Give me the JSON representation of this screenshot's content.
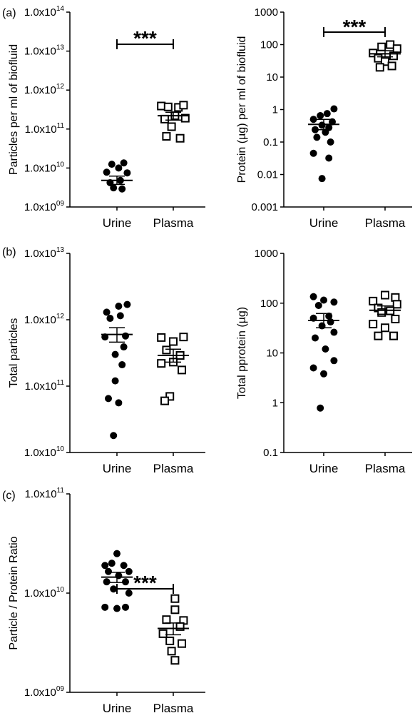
{
  "chart_data": [
    {
      "type": "scatter",
      "panel": "(a)",
      "ylabel": "Particles per ml of biofluid",
      "scale": "log",
      "ylim": [
        1000000000.0,
        100000000000000.0
      ],
      "yticks": [
        {
          "value": 1000000000.0,
          "label": "1.0x10",
          "exp": "09"
        },
        {
          "value": 10000000000.0,
          "label": "1.0x10",
          "exp": "10"
        },
        {
          "value": 100000000000.0,
          "label": "1.0x10",
          "exp": "11"
        },
        {
          "value": 1000000000000.0,
          "label": "1.0x10",
          "exp": "12"
        },
        {
          "value": 10000000000000.0,
          "label": "1.0x10",
          "exp": "13"
        },
        {
          "value": 100000000000000.0,
          "label": "1.0x10",
          "exp": "14"
        }
      ],
      "categories": [
        "Urine",
        "Plasma"
      ],
      "series": [
        {
          "category": "Urine",
          "marker": "filled-circle",
          "points": [
            [
              -0.3,
              7800000000.0
            ],
            [
              0.05,
              10000000000.0
            ],
            [
              0.3,
              7500000000.0
            ],
            [
              -0.15,
              12500000000.0
            ],
            [
              0.2,
              13500000000.0
            ],
            [
              -0.2,
              4200000000.0
            ],
            [
              0.1,
              4800000000.0
            ],
            [
              -0.1,
              3100000000.0
            ],
            [
              0.15,
              2900000000.0
            ]
          ],
          "mean": 4800000000.0,
          "sem_low": 3800000000.0,
          "sem_high": 6200000000.0
        },
        {
          "category": "Plasma",
          "marker": "open-square",
          "points": [
            [
              -0.35,
              390000000000.0
            ],
            [
              -0.15,
              370000000000.0
            ],
            [
              0.15,
              360000000000.0
            ],
            [
              0.3,
              410000000000.0
            ],
            [
              -0.25,
              180000000000.0
            ],
            [
              0.05,
              220000000000.0
            ],
            [
              0.35,
              190000000000.0
            ],
            [
              -0.05,
              115000000000.0
            ],
            [
              -0.2,
              65000000000.0
            ],
            [
              0.2,
              58000000000.0
            ]
          ],
          "mean": 220000000000.0,
          "sem_low": 170000000000.0,
          "sem_high": 270000000000.0
        }
      ],
      "significance": "***"
    },
    {
      "type": "scatter",
      "panel": "",
      "ylabel": "Protein (µg) per ml of biofluid",
      "scale": "log",
      "ylim": [
        0.001,
        1000
      ],
      "yticks": [
        {
          "value": 0.001,
          "label": "0.001"
        },
        {
          "value": 0.01,
          "label": "0.01"
        },
        {
          "value": 0.1,
          "label": "0.1"
        },
        {
          "value": 1,
          "label": "1"
        },
        {
          "value": 10,
          "label": "10"
        },
        {
          "value": 100,
          "label": "100"
        },
        {
          "value": 1000,
          "label": "1000"
        }
      ],
      "categories": [
        "Urine",
        "Plasma"
      ],
      "series": [
        {
          "category": "Urine",
          "marker": "filled-circle",
          "points": [
            [
              0.3,
              1.05
            ],
            [
              0.1,
              0.75
            ],
            [
              -0.1,
              0.65
            ],
            [
              -0.3,
              0.5
            ],
            [
              0.25,
              0.42
            ],
            [
              -0.05,
              0.33
            ],
            [
              0.15,
              0.28
            ],
            [
              -0.25,
              0.24
            ],
            [
              0.05,
              0.2
            ],
            [
              -0.2,
              0.14
            ],
            [
              0.2,
              0.1
            ],
            [
              -0.3,
              0.045
            ],
            [
              0.15,
              0.032
            ],
            [
              -0.05,
              0.0075
            ]
          ],
          "mean": 0.35,
          "sem_low": 0.24,
          "sem_high": 0.5
        },
        {
          "category": "Plasma",
          "marker": "open-square",
          "points": [
            [
              0.15,
              100
            ],
            [
              -0.1,
              85
            ],
            [
              0.35,
              75
            ],
            [
              -0.35,
              55
            ],
            [
              0.25,
              45
            ],
            [
              -0.2,
              38
            ],
            [
              0.0,
              30
            ],
            [
              0.2,
              22
            ],
            [
              -0.15,
              20
            ]
          ],
          "mean": 52,
          "sem_low": 42,
          "sem_high": 65
        }
      ],
      "significance": "***"
    },
    {
      "type": "scatter",
      "panel": "(b)",
      "ylabel": "Total particles",
      "scale": "log",
      "ylim": [
        10000000000.0,
        10000000000000.0
      ],
      "yticks": [
        {
          "value": 10000000000.0,
          "label": "1.0x10",
          "exp": "10"
        },
        {
          "value": 100000000000.0,
          "label": "1.0x10",
          "exp": "11"
        },
        {
          "value": 1000000000000.0,
          "label": "1.0x10",
          "exp": "12"
        },
        {
          "value": 10000000000000.0,
          "label": "1.0x10",
          "exp": "13"
        }
      ],
      "categories": [
        "Urine",
        "Plasma"
      ],
      "series": [
        {
          "category": "Urine",
          "marker": "filled-circle",
          "points": [
            [
              0.3,
              1700000000000.0
            ],
            [
              0.05,
              1600000000000.0
            ],
            [
              -0.3,
              1300000000000.0
            ],
            [
              0.1,
              1150000000000.0
            ],
            [
              -0.2,
              1050000000000.0
            ],
            [
              0.25,
              570000000000.0
            ],
            [
              -0.35,
              550000000000.0
            ],
            [
              0.2,
              390000000000.0
            ],
            [
              -0.05,
              300000000000.0
            ],
            [
              0.15,
              210000000000.0
            ],
            [
              -0.05,
              120000000000.0
            ],
            [
              -0.25,
              65000000000.0
            ],
            [
              0.05,
              56000000000.0
            ],
            [
              -0.1,
              18000000000.0
            ]
          ],
          "mean": 600000000000.0,
          "sem_low": 460000000000.0,
          "sem_high": 760000000000.0
        },
        {
          "category": "Plasma",
          "marker": "open-square",
          "points": [
            [
              -0.35,
              540000000000.0
            ],
            [
              0.3,
              550000000000.0
            ],
            [
              0.0,
              470000000000.0
            ],
            [
              -0.2,
              350000000000.0
            ],
            [
              0.2,
              290000000000.0
            ],
            [
              -0.35,
              220000000000.0
            ],
            [
              0.0,
              230000000000.0
            ],
            [
              0.25,
              175000000000.0
            ],
            [
              -0.1,
              70000000000.0
            ],
            [
              -0.25,
              60000000000.0
            ]
          ],
          "mean": 290000000000.0,
          "sem_low": 230000000000.0,
          "sem_high": 360000000000.0
        }
      ]
    },
    {
      "type": "scatter",
      "panel": "",
      "ylabel": "Total pprotein (µg)",
      "scale": "log",
      "ylim": [
        0.1,
        1000
      ],
      "yticks": [
        {
          "value": 0.1,
          "label": "0.1"
        },
        {
          "value": 1,
          "label": "1"
        },
        {
          "value": 10,
          "label": "10"
        },
        {
          "value": 100,
          "label": "100"
        },
        {
          "value": 1000,
          "label": "1000"
        }
      ],
      "categories": [
        "Urine",
        "Plasma"
      ],
      "series": [
        {
          "category": "Urine",
          "marker": "filled-circle",
          "points": [
            [
              -0.3,
              135
            ],
            [
              0.0,
              115
            ],
            [
              0.3,
              105
            ],
            [
              -0.15,
              90
            ],
            [
              0.15,
              55
            ],
            [
              -0.3,
              50
            ],
            [
              0.2,
              42
            ],
            [
              -0.05,
              35
            ],
            [
              0.3,
              26
            ],
            [
              -0.25,
              20
            ],
            [
              0.05,
              12
            ],
            [
              0.3,
              7
            ],
            [
              -0.3,
              5
            ],
            [
              0.0,
              3.8
            ],
            [
              -0.1,
              0.78
            ]
          ],
          "mean": 45,
          "sem_low": 32,
          "sem_high": 62
        },
        {
          "category": "Plasma",
          "marker": "open-square",
          "points": [
            [
              0.0,
              145
            ],
            [
              0.3,
              130
            ],
            [
              -0.35,
              110
            ],
            [
              0.35,
              95
            ],
            [
              -0.2,
              80
            ],
            [
              0.15,
              70
            ],
            [
              -0.1,
              65
            ],
            [
              0.3,
              48
            ],
            [
              -0.35,
              38
            ],
            [
              0.0,
              32
            ],
            [
              0.25,
              22
            ],
            [
              -0.2,
              22
            ]
          ],
          "mean": 72,
          "sem_low": 60,
          "sem_high": 88
        }
      ]
    },
    {
      "type": "scatter",
      "panel": "(c)",
      "ylabel": "Particle / Protein Ratio",
      "scale": "log",
      "ylim": [
        1000000000.0,
        100000000000.0
      ],
      "yticks": [
        {
          "value": 1000000000.0,
          "label": "1.0x10",
          "exp": "09"
        },
        {
          "value": 10000000000.0,
          "label": "1.0x10",
          "exp": "10"
        },
        {
          "value": 100000000000.0,
          "label": "1.0x10",
          "exp": "11"
        }
      ],
      "categories": [
        "Urine",
        "Plasma"
      ],
      "series": [
        {
          "category": "Urine",
          "marker": "filled-circle",
          "points": [
            [
              0.0,
              25000000000.0
            ],
            [
              -0.35,
              19000000000.0
            ],
            [
              -0.15,
              20000000000.0
            ],
            [
              0.2,
              19000000000.0
            ],
            [
              -0.25,
              16500000000.0
            ],
            [
              0.35,
              16500000000.0
            ],
            [
              0.05,
              15000000000.0
            ],
            [
              -0.3,
              13000000000.0
            ],
            [
              0.25,
              13000000000.0
            ],
            [
              -0.1,
              11000000000.0
            ],
            [
              0.35,
              10000000000.0
            ],
            [
              -0.35,
              7200000000.0
            ],
            [
              0.0,
              7000000000.0
            ],
            [
              0.25,
              7200000000.0
            ]
          ],
          "mean": 14500000000.0,
          "sem_low": 12800000000.0,
          "sem_high": 16200000000.0
        },
        {
          "category": "Plasma",
          "marker": "open-square",
          "points": [
            [
              0.05,
              8800000000.0
            ],
            [
              0.05,
              6800000000.0
            ],
            [
              -0.2,
              5400000000.0
            ],
            [
              0.3,
              5300000000.0
            ],
            [
              0.2,
              4600000000.0
            ],
            [
              -0.3,
              3900000000.0
            ],
            [
              -0.1,
              3300000000.0
            ],
            [
              0.25,
              3100000000.0
            ],
            [
              -0.05,
              2600000000.0
            ],
            [
              0.05,
              2100000000.0
            ]
          ],
          "mean": 4400000000.0,
          "sem_low": 3800000000.0,
          "sem_high": 5000000000.0
        }
      ],
      "significance": "***"
    }
  ]
}
